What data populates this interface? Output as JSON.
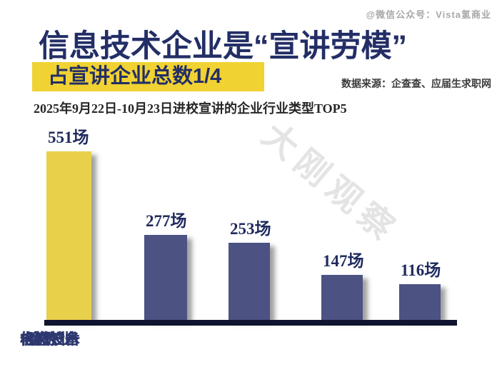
{
  "header": {
    "account_watermark": "@微信公众号：Vista氢商业",
    "title": "信息技术企业是“宣讲劳模”",
    "subtitle_highlight": "占宣讲企业总数1/4",
    "data_source": "数据来源：企查查、应届生求职网",
    "caption": "2025年9月22日-10月23日进校宣讲的企业行业类型TOP5"
  },
  "watermark_diagonal": "大刚观察",
  "colors": {
    "title_navy": "#232e66",
    "highlight_yellow": "#f0d232",
    "bar_yellow": "#e8d04a",
    "bar_navy": "#4c5282",
    "axis_dark": "#10142e",
    "value_label_navy": "#1f2a5e",
    "category_label_navy": "#2e3870",
    "diagonal_watermark_gray": "#e4e4e4"
  },
  "chart_data": {
    "type": "bar",
    "title": "2025年9月22日-10月23日进校宣讲的企业行业类型TOP5",
    "categories": [
      "信息技术",
      "建筑业",
      "机械设备",
      "金融业",
      "电力设备"
    ],
    "values": [
      551,
      277,
      253,
      147,
      116
    ],
    "value_labels": [
      "551场",
      "277场",
      "253场",
      "147场",
      "116场"
    ],
    "unit": "场",
    "xlabel": "",
    "ylabel": "",
    "ylim": [
      0,
      560
    ],
    "grid": false,
    "legend": false,
    "highlight_index": 0
  }
}
